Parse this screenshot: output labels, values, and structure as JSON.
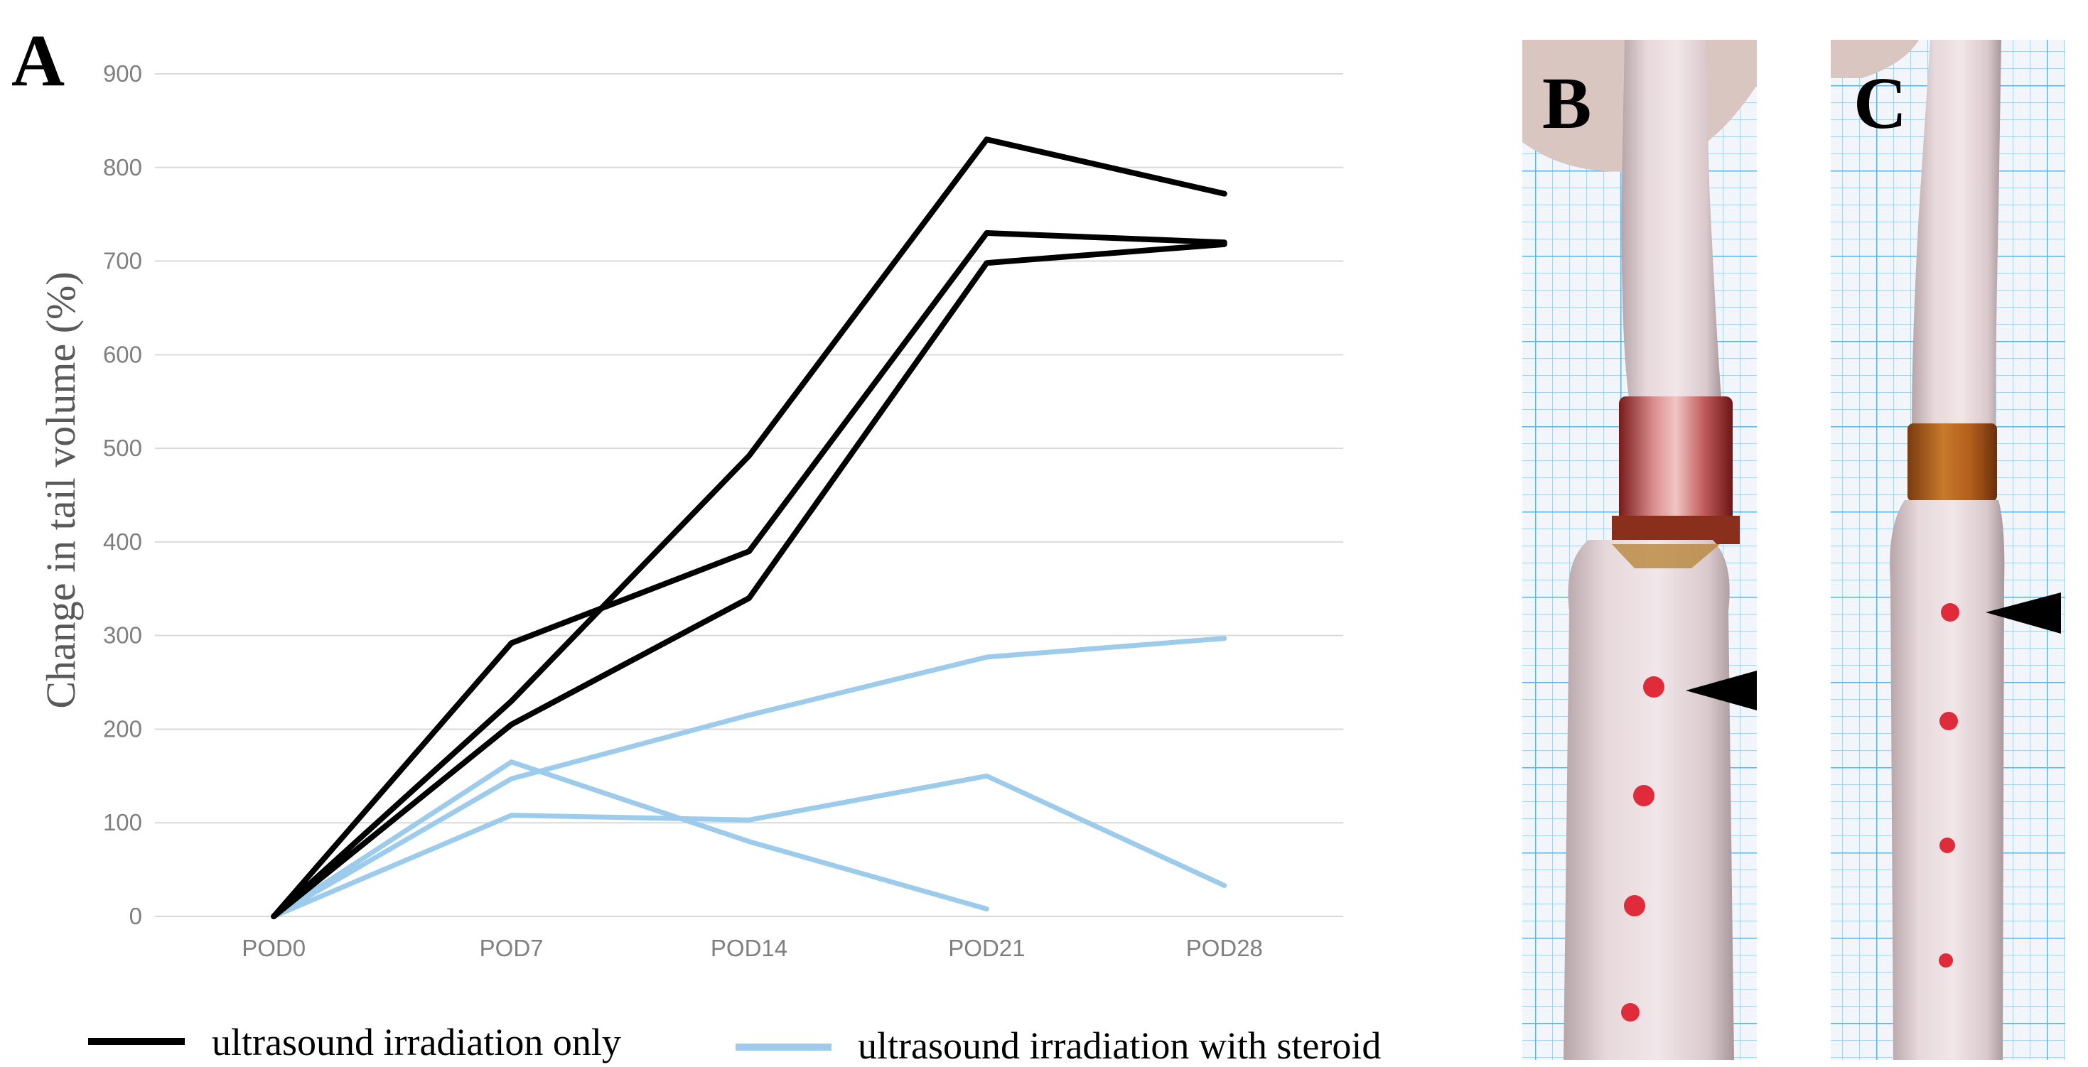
{
  "chart_data": {
    "type": "line",
    "panel_label": "A",
    "categories": [
      "POD0",
      "POD7",
      "POD14",
      "POD21",
      "POD28"
    ],
    "ylabel": "Change in tail volume (%)",
    "xlabel": "",
    "ylim": [
      0,
      900
    ],
    "yticks": [
      0,
      100,
      200,
      300,
      400,
      500,
      600,
      700,
      800,
      900
    ],
    "grid": true,
    "legend_position": "bottom",
    "groups": [
      {
        "name": "ultrasound irradiation only",
        "color": "#000000"
      },
      {
        "name": "ultrasound irradiation with steroid",
        "color": "#9dcbec"
      }
    ],
    "series": [
      {
        "group": 0,
        "values": [
          0,
          292,
          390,
          730,
          720
        ]
      },
      {
        "group": 0,
        "values": [
          0,
          230,
          492,
          830,
          772
        ]
      },
      {
        "group": 0,
        "values": [
          0,
          205,
          340,
          698,
          718
        ]
      },
      {
        "group": 1,
        "values": [
          0,
          165,
          80,
          8,
          null
        ]
      },
      {
        "group": 1,
        "values": [
          0,
          147,
          215,
          277,
          297
        ]
      },
      {
        "group": 1,
        "values": [
          0,
          108,
          103,
          150,
          33
        ]
      }
    ]
  },
  "photos": [
    {
      "label": "B",
      "description_icon": "tail-photo-with-ring-and-arrowhead"
    },
    {
      "label": "C",
      "description_icon": "tail-photo-with-ring-and-arrowhead"
    }
  ]
}
